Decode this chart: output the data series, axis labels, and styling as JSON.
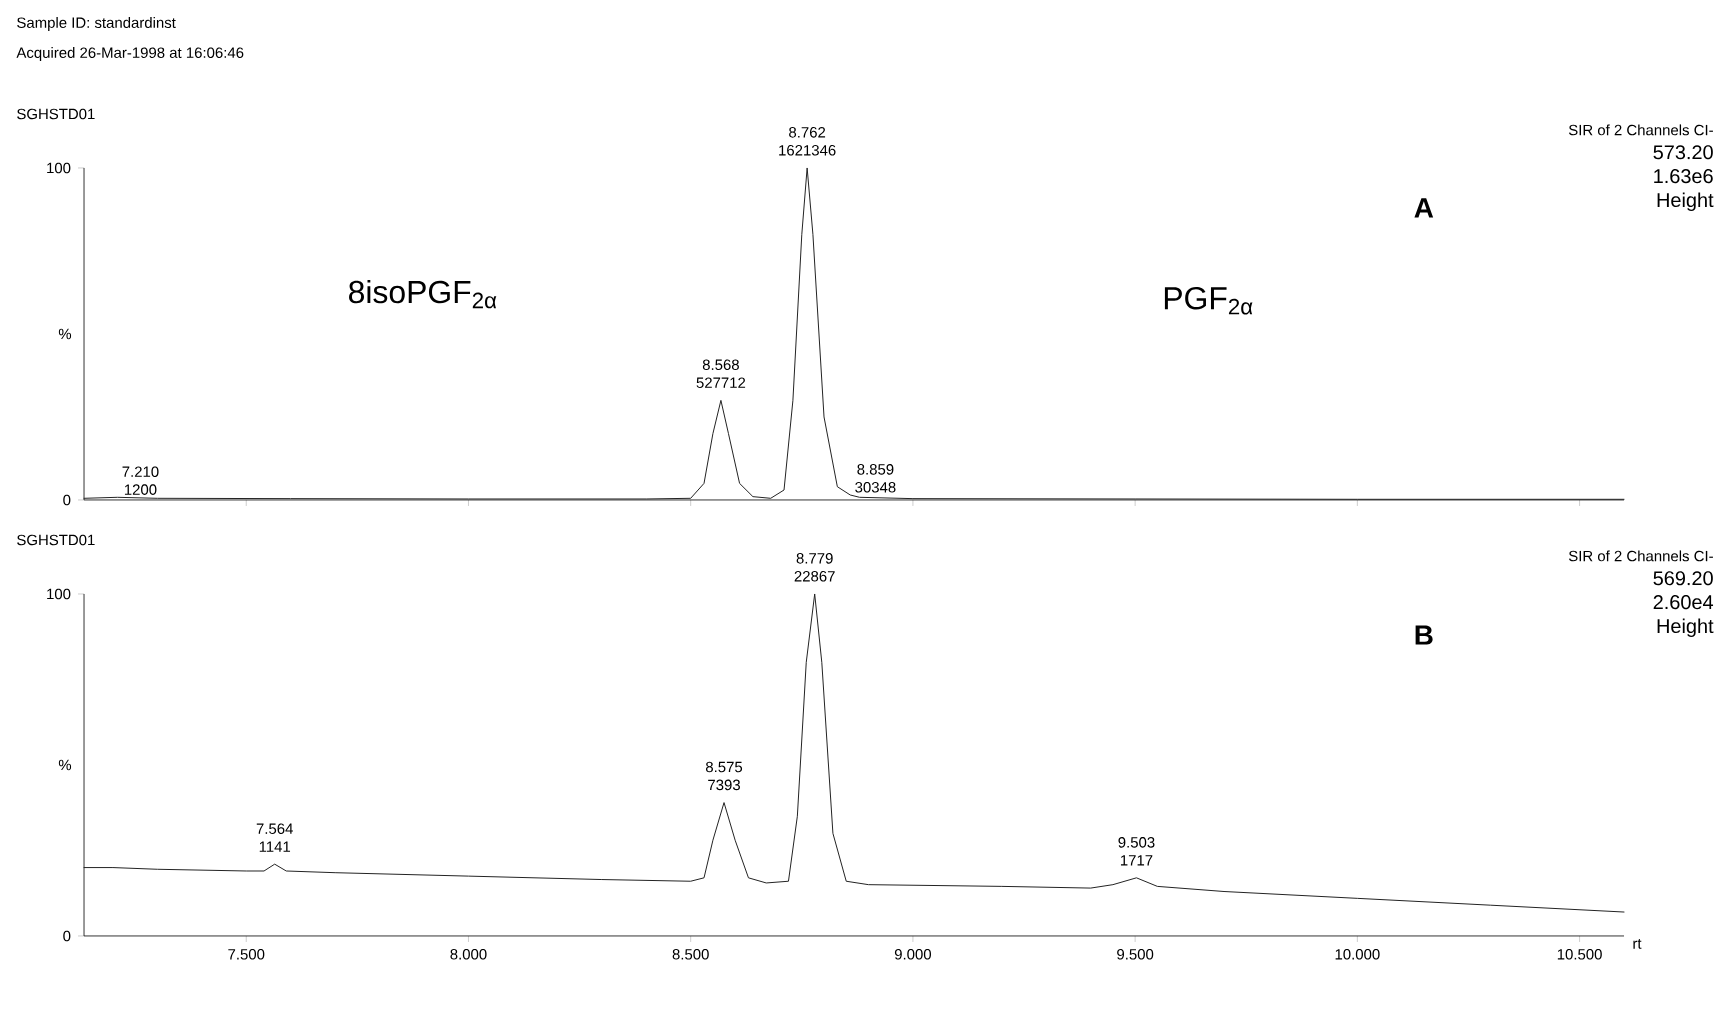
{
  "chart_data": [
    {
      "type": "line",
      "title": "Sample ID: standardinst",
      "subtitle": "Acquired 26-Mar-1998 at 16:06:46",
      "ylabel": "%",
      "color": "#222222",
      "line_style": "solid",
      "x": [
        7.135,
        7.21,
        7.3,
        7.6,
        8.0,
        8.4,
        8.5,
        8.53,
        8.55,
        8.568,
        8.585,
        8.61,
        8.64,
        8.68,
        8.71,
        8.73,
        8.75,
        8.762,
        8.775,
        8.8,
        8.83,
        8.859,
        8.88,
        9.0,
        9.5,
        10.0,
        10.6
      ],
      "values": [
        0.5,
        0.8,
        0.5,
        0.4,
        0.3,
        0.3,
        0.5,
        5,
        20,
        30,
        20,
        5,
        1,
        0.5,
        3,
        30,
        80,
        100,
        80,
        25,
        4,
        1.5,
        0.8,
        0.4,
        0.3,
        0.2,
        0.2
      ],
      "xlim": [
        7.135,
        10.6
      ],
      "ylim": [
        0,
        100
      ],
      "yticks": [
        0,
        100
      ],
      "xticks": [
        {
          "value": 7.5,
          "label": null
        },
        {
          "value": 8.0,
          "label": null
        },
        {
          "value": 8.5,
          "label": null
        },
        {
          "value": 9.0,
          "label": null
        },
        {
          "value": 9.5,
          "label": null
        },
        {
          "value": 10.0,
          "label": null
        },
        {
          "value": 10.5,
          "label": null
        }
      ],
      "tick_labels": "y",
      "annotations": [
        "SGHSTD01",
        "A",
        "SIR of 2 Channels CI-",
        "573.20",
        "1.63e6",
        "Height",
        "8isoPGF$_{2α}$",
        "PGF$_{2α}$",
        {
          "text": "7.210",
          "x": 7.21,
          "y": 0.8
        },
        {
          "text": "1200",
          "x": 7.21,
          "y": 0.8
        },
        {
          "text": "8.568",
          "x": 8.568,
          "y": 30
        },
        {
          "text": "527712",
          "x": 8.568,
          "y": 30
        },
        {
          "text": "8.762",
          "x": 8.762,
          "y": 100
        },
        {
          "text": "1621346",
          "x": 8.762,
          "y": 100
        },
        {
          "text": "8.859",
          "x": 8.859,
          "y": 1.5
        },
        {
          "text": "30348",
          "x": 8.859,
          "y": 1.5
        }
      ]
    },
    {
      "type": "line",
      "ylabel": "%",
      "xlabel": "rt",
      "color": "#222222",
      "line_style": "solid",
      "x": [
        7.135,
        7.2,
        7.3,
        7.5,
        7.54,
        7.564,
        7.59,
        7.7,
        8.0,
        8.3,
        8.5,
        8.53,
        8.55,
        8.575,
        8.6,
        8.63,
        8.67,
        8.72,
        8.74,
        8.76,
        8.779,
        8.795,
        8.82,
        8.85,
        8.9,
        9.2,
        9.4,
        9.45,
        9.503,
        9.55,
        9.7,
        10.0,
        10.3,
        10.6
      ],
      "values": [
        20,
        20,
        19.5,
        19,
        19,
        21,
        19,
        18.5,
        17.5,
        16.5,
        16,
        17,
        28,
        39,
        28,
        17,
        15.5,
        16,
        35,
        80,
        100,
        80,
        30,
        16,
        15,
        14.5,
        14,
        15,
        17,
        14.5,
        13,
        11,
        9,
        7
      ],
      "xlim": [
        7.135,
        10.6
      ],
      "ylim": [
        0,
        100
      ],
      "yticks": [
        0,
        100
      ],
      "xticks": [
        {
          "value": 7.5,
          "label": "7.500"
        },
        {
          "value": 8.0,
          "label": "8.000"
        },
        {
          "value": 8.5,
          "label": "8.500"
        },
        {
          "value": 9.0,
          "label": "9.000"
        },
        {
          "value": 9.5,
          "label": "9.500"
        },
        {
          "value": 10.0,
          "label": "10.000"
        },
        {
          "value": 10.5,
          "label": "10.500"
        }
      ],
      "annotations": [
        "SGHSTD01",
        "B",
        "SIR of 2 Channels CI-",
        "569.20",
        "2.60e4",
        "Height",
        {
          "text": "7.564",
          "x": 7.564,
          "y": 21
        },
        {
          "text": "1141",
          "x": 7.564,
          "y": 21
        },
        {
          "text": "8.575",
          "x": 8.575,
          "y": 39
        },
        {
          "text": "7393",
          "x": 8.575,
          "y": 39
        },
        {
          "text": "8.779",
          "x": 8.779,
          "y": 100
        },
        {
          "text": "22867",
          "x": 8.779,
          "y": 100
        },
        {
          "text": "9.503",
          "x": 9.503,
          "y": 17
        },
        {
          "text": "1717",
          "x": 9.503,
          "y": 17
        }
      ]
    }
  ]
}
